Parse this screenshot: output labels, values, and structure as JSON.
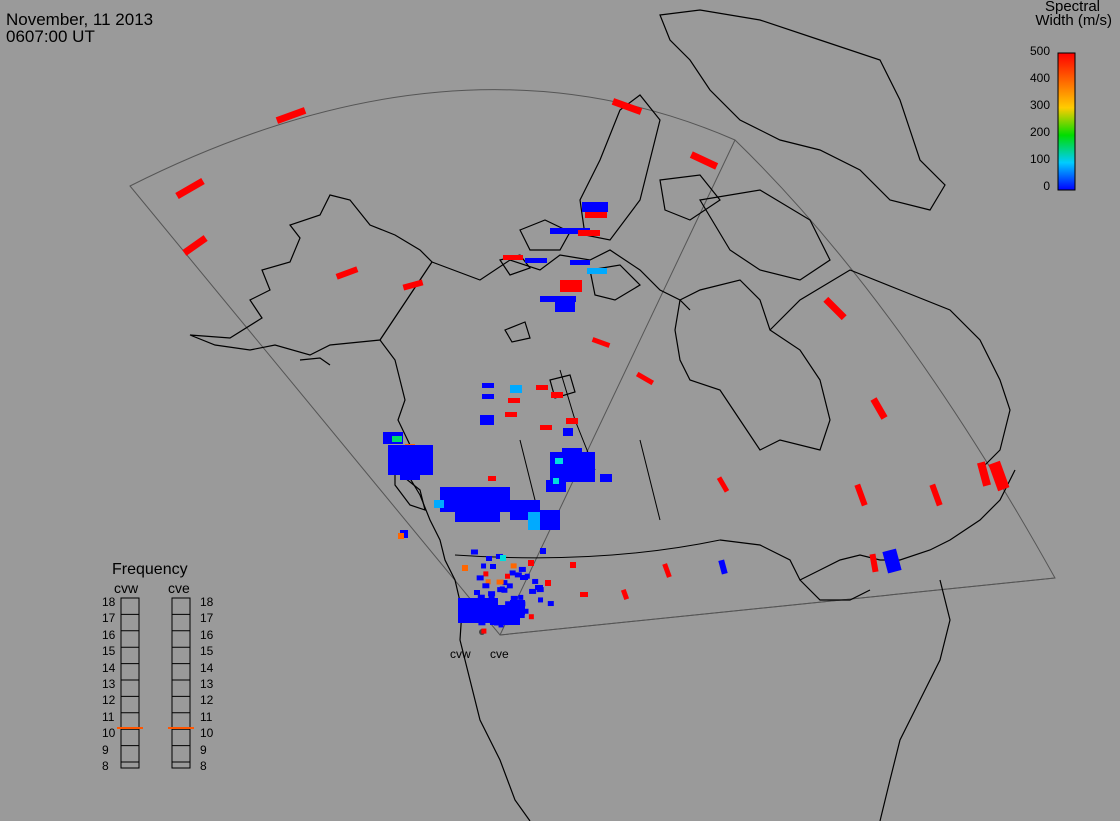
{
  "header": {
    "date": "November, 11 2013",
    "time": "0607:00 UT"
  },
  "scale": {
    "title_line1": "Spectral",
    "title_line2": "Width (m/s)",
    "ticks": [
      "500",
      "400",
      "300",
      "200",
      "100",
      "0"
    ],
    "colors": [
      "#ff0000",
      "#ff6600",
      "#ffcc00",
      "#00dd00",
      "#00dddd",
      "#0000ff"
    ],
    "min": 0,
    "max": 500
  },
  "frequency": {
    "title": "Frequency",
    "radars": [
      {
        "name": "cvw",
        "selected": 10.5
      },
      {
        "name": "cve",
        "selected": 10.5
      }
    ],
    "ticks": [
      "18",
      "17",
      "16",
      "15",
      "14",
      "13",
      "12",
      "11",
      "10",
      "9",
      "8"
    ],
    "marker_color": "#ff5500"
  },
  "sites": [
    {
      "name": "cvw"
    },
    {
      "name": "cve"
    }
  ],
  "colors": {
    "background": "#9a9a9a",
    "coastline": "#000000",
    "fov_outline": "#555555",
    "low_width": "#0000ff",
    "high_width": "#ff0000"
  }
}
